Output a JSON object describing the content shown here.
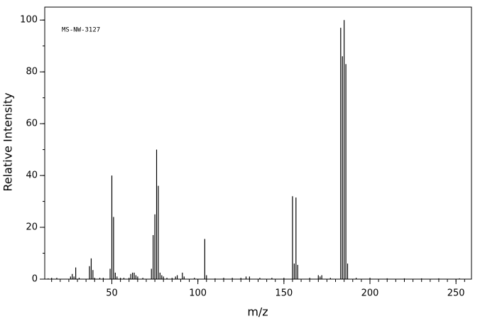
{
  "chart_data": {
    "type": "bar",
    "annotation": "MS-NW-3127",
    "xlabel": "m/z",
    "ylabel": "Relative Intensity",
    "x": [
      13,
      15,
      18,
      26,
      27,
      28,
      29,
      31,
      37,
      38,
      39,
      40,
      43,
      45,
      49,
      50,
      51,
      52,
      53,
      55,
      57,
      60,
      61,
      62,
      63,
      64,
      65,
      68,
      73,
      74,
      75,
      76,
      77,
      78,
      79,
      80,
      82,
      85,
      87,
      88,
      91,
      92,
      98,
      104,
      105,
      110,
      115,
      120,
      125,
      128,
      130,
      136,
      143,
      150,
      155,
      156,
      157,
      158,
      165,
      170,
      171,
      172,
      177,
      183,
      184,
      185,
      186,
      187,
      192,
      200,
      210,
      220,
      230,
      240,
      252
    ],
    "values": [
      0.3,
      0.5,
      0.5,
      1,
      2,
      1,
      4.5,
      0.5,
      5,
      8,
      3.5,
      0.5,
      0.5,
      0.5,
      4,
      40,
      24,
      2.5,
      1,
      0.5,
      0.5,
      0.5,
      2,
      2.5,
      2.5,
      1.5,
      1,
      0.5,
      4,
      17,
      25,
      50,
      36,
      2.5,
      1.5,
      1,
      0.5,
      0.5,
      1,
      1.5,
      2.5,
      1,
      0.5,
      15.5,
      1.5,
      0.3,
      0.5,
      0.5,
      0.5,
      1,
      1,
      0.5,
      0.5,
      0.5,
      32,
      6,
      31.5,
      5.5,
      0.5,
      1.5,
      1,
      1.5,
      0.5,
      97,
      86,
      100,
      83,
      6,
      0.5,
      0.5,
      0.3,
      0.3,
      0.3,
      0.3,
      0.3
    ],
    "color": "#000000",
    "xlim": [
      11,
      259
    ],
    "xticks": [
      50,
      100,
      150,
      200,
      250
    ],
    "x_minor_step": 5,
    "ylim": [
      0,
      105
    ],
    "yticks": [
      0,
      20,
      40,
      60,
      80,
      100
    ],
    "y_minor_step": 10
  }
}
